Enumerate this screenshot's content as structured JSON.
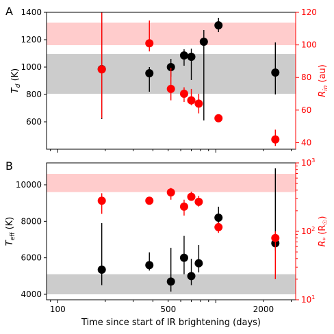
{
  "chart_data": [
    {
      "type": "scatter",
      "panel_label": "A",
      "xlabel": "",
      "ylabel_left": "T_d (K)",
      "ylabel_right": "R_in (au)",
      "xscale": "log",
      "xlim": [
        85,
        3200
      ],
      "ylim_left": [
        400,
        1400
      ],
      "ylim_right": [
        36,
        120
      ],
      "yticks_left": [
        600,
        800,
        1000,
        1200,
        1400
      ],
      "yticks_right": [
        40,
        60,
        80,
        100,
        120
      ],
      "left_axis_color": "#000000",
      "right_axis_color": "#ff0000",
      "bands": [
        {
          "axis": "left",
          "range": [
            805,
            1095
          ],
          "color": "#cccccc"
        },
        {
          "axis": "left",
          "range": [
            1160,
            1325
          ],
          "color": "#ffcccc"
        }
      ],
      "series": [
        {
          "axis": "left",
          "color": "#000000",
          "points": [
            {
              "x": 190,
              "y": 985,
              "ylo": 620,
              "yhi": 1400
            },
            {
              "x": 380,
              "y": 955,
              "ylo": 820,
              "yhi": 1000
            },
            {
              "x": 520,
              "y": 1000,
              "ylo": 930,
              "yhi": 1060
            },
            {
              "x": 630,
              "y": 1085,
              "ylo": 1010,
              "yhi": 1130
            },
            {
              "x": 700,
              "y": 1075,
              "ylo": 905,
              "yhi": 1135
            },
            {
              "x": 840,
              "y": 1185,
              "ylo": 610,
              "yhi": 1270
            },
            {
              "x": 1040,
              "y": 1305,
              "ylo": 1255,
              "yhi": 1360
            },
            {
              "x": 2380,
              "y": 960,
              "ylo": 800,
              "yhi": 1180
            }
          ]
        },
        {
          "axis": "right",
          "color": "#ff0000",
          "points": [
            {
              "x": 190,
              "y": 85,
              "ylo": 55,
              "yhi": 120
            },
            {
              "x": 380,
              "y": 101,
              "ylo": 96,
              "yhi": 115
            },
            {
              "x": 520,
              "y": 73,
              "ylo": 66,
              "yhi": 86
            },
            {
              "x": 630,
              "y": 70,
              "ylo": 65,
              "yhi": 74
            },
            {
              "x": 700,
              "y": 66,
              "ylo": 63,
              "yhi": 73
            },
            {
              "x": 780,
              "y": 64,
              "ylo": 58,
              "yhi": 70
            },
            {
              "x": 1040,
              "y": 55,
              "ylo": 54,
              "yhi": 56
            },
            {
              "x": 2380,
              "y": 42,
              "ylo": 38,
              "yhi": 48
            }
          ]
        }
      ]
    },
    {
      "type": "scatter",
      "panel_label": "B",
      "xlabel": "Time since start of IR brightening (days)",
      "ylabel_left": "T_eff (K)",
      "ylabel_right": "R_* (R_☉)",
      "xscale": "log",
      "xlim": [
        85,
        3200
      ],
      "xticks": [
        100,
        500,
        2000
      ],
      "ylim_left": [
        3700,
        11200
      ],
      "ylim_right_log": [
        10,
        1000
      ],
      "yticks_left": [
        4000,
        6000,
        8000,
        10000
      ],
      "yticks_right": [
        10,
        100,
        1000
      ],
      "yticks_right_labels": [
        "10^1",
        "10^2",
        "10^3"
      ],
      "left_axis_color": "#000000",
      "right_axis_color": "#ff0000",
      "bands": [
        {
          "axis": "left",
          "range": [
            4000,
            5100
          ],
          "color": "#cccccc"
        },
        {
          "axis": "left",
          "range": [
            9600,
            10600
          ],
          "color": "#ffcccc"
        }
      ],
      "series": [
        {
          "axis": "left",
          "color": "#000000",
          "points": [
            {
              "x": 190,
              "y": 5350,
              "ylo": 4500,
              "yhi": 7900
            },
            {
              "x": 380,
              "y": 5600,
              "ylo": 5300,
              "yhi": 6300
            },
            {
              "x": 520,
              "y": 4700,
              "ylo": 4150,
              "yhi": 6550
            },
            {
              "x": 630,
              "y": 6000,
              "ylo": 5100,
              "yhi": 7200
            },
            {
              "x": 700,
              "y": 5000,
              "ylo": 4500,
              "yhi": 5950
            },
            {
              "x": 780,
              "y": 5700,
              "ylo": 5200,
              "yhi": 6700
            },
            {
              "x": 1040,
              "y": 8200,
              "ylo": 7700,
              "yhi": 8800
            },
            {
              "x": 2380,
              "y": 6800,
              "ylo": 6400,
              "yhi": 10900
            }
          ]
        },
        {
          "axis": "right",
          "color": "#ff0000",
          "points": [
            {
              "x": 190,
              "y": 280,
              "ylo": 180,
              "yhi": 360
            },
            {
              "x": 380,
              "y": 280,
              "ylo": 250,
              "yhi": 310
            },
            {
              "x": 520,
              "y": 370,
              "ylo": 290,
              "yhi": 430
            },
            {
              "x": 630,
              "y": 230,
              "ylo": 170,
              "yhi": 290
            },
            {
              "x": 700,
              "y": 320,
              "ylo": 280,
              "yhi": 380
            },
            {
              "x": 780,
              "y": 270,
              "ylo": 230,
              "yhi": 330
            },
            {
              "x": 1040,
              "y": 115,
              "ylo": 95,
              "yhi": 135
            },
            {
              "x": 2380,
              "y": 80,
              "ylo": 20,
              "yhi": 100
            }
          ]
        }
      ]
    }
  ]
}
